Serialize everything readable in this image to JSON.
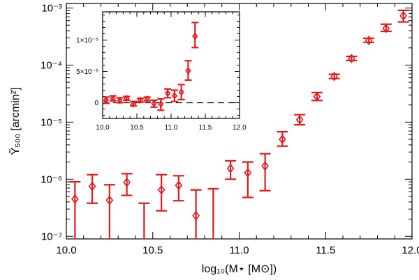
{
  "chart_data": [
    {
      "type": "scatter",
      "panel": "main",
      "xlabel": "log₁₀(M⋆ [M⊙])",
      "ylabel": "Ỹ₅₀₀ [arcmin²]",
      "xlim": [
        10.0,
        12.0
      ],
      "ylim": [
        9e-08,
        0.0012
      ],
      "yscale": "log",
      "xticks": [
        10.0,
        10.5,
        11.0,
        11.5,
        12.0
      ],
      "xtick_labels": [
        "10.0",
        "10.5",
        "11.0",
        "11.5",
        "12.0"
      ],
      "yticks": [
        1e-07,
        1e-06,
        1e-05,
        0.0001,
        0.001
      ],
      "ytick_labels": [
        "10⁻⁷",
        "10⁻⁶",
        "10⁻⁵",
        "10⁻⁴",
        "10⁻³"
      ],
      "color": "#e31a1c",
      "marker": "diamond",
      "points": [
        {
          "x": 10.05,
          "y": 4.5e-07,
          "lo": 9e-08,
          "hi": 9e-07
        },
        {
          "x": 10.15,
          "y": 7.5e-07,
          "lo": 3.8e-07,
          "hi": 1.2e-06
        },
        {
          "x": 10.25,
          "y": 4.3e-07,
          "lo": 9e-08,
          "hi": 8e-07
        },
        {
          "x": 10.35,
          "y": 8.8e-07,
          "lo": 5.2e-07,
          "hi": 1.25e-06
        },
        {
          "x": 10.45,
          "y": 9e-08,
          "lo": 9e-08,
          "hi": 3.8e-07
        },
        {
          "x": 10.55,
          "y": 6.5e-07,
          "lo": 2.8e-07,
          "hi": 1.2e-06
        },
        {
          "x": 10.65,
          "y": 7.8e-07,
          "lo": 4.2e-07,
          "hi": 1.15e-06
        },
        {
          "x": 10.75,
          "y": 2.3e-07,
          "lo": 9e-08,
          "hi": 6.5e-07
        },
        {
          "x": 10.85,
          "y": 9e-08,
          "lo": 9e-08,
          "hi": 6.8e-07
        },
        {
          "x": 10.95,
          "y": 1.55e-06,
          "lo": 1e-06,
          "hi": 2.1e-06
        },
        {
          "x": 11.05,
          "y": 1.3e-06,
          "lo": 4.8e-07,
          "hi": 2e-06
        },
        {
          "x": 11.15,
          "y": 1.7e-06,
          "lo": 6.3e-07,
          "hi": 2.8e-06
        },
        {
          "x": 11.25,
          "y": 5e-06,
          "lo": 3.8e-06,
          "hi": 6.8e-06
        },
        {
          "x": 11.35,
          "y": 1.1e-05,
          "lo": 9e-06,
          "hi": 1.35e-05
        },
        {
          "x": 11.45,
          "y": 2.8e-05,
          "lo": 2.4e-05,
          "hi": 3.3e-05
        },
        {
          "x": 11.55,
          "y": 6.3e-05,
          "lo": 5.8e-05,
          "hi": 6.9e-05
        },
        {
          "x": 11.65,
          "y": 0.00013,
          "lo": 0.00012,
          "hi": 0.000142
        },
        {
          "x": 11.75,
          "y": 0.00027,
          "lo": 0.00025,
          "hi": 0.000295
        },
        {
          "x": 11.85,
          "y": 0.00044,
          "lo": 0.00039,
          "hi": 0.00052
        },
        {
          "x": 11.95,
          "y": 0.00073,
          "lo": 0.00057,
          "hi": 0.00091
        }
      ]
    },
    {
      "type": "scatter",
      "panel": "inset",
      "xlim": [
        10.0,
        12.0
      ],
      "ylim": [
        -2.5e-06,
        1.45e-05
      ],
      "yscale": "linear",
      "xticks": [
        10.0,
        10.5,
        11.0,
        11.5,
        12.0
      ],
      "xtick_labels": [
        "10.0",
        "10.5",
        "11.0",
        "11.5",
        "12.0"
      ],
      "yticks": [
        0,
        5e-06,
        1e-05
      ],
      "ytick_labels": [
        "0",
        "5×10⁻⁶",
        "1×10⁻⁵"
      ],
      "zero_line": "dashed",
      "color": "#e31a1c",
      "marker": "diamond",
      "points": [
        {
          "x": 10.05,
          "y": 4e-07,
          "lo": -1e-07,
          "hi": 9e-07
        },
        {
          "x": 10.15,
          "y": 7e-07,
          "lo": 3e-07,
          "hi": 1.1e-06
        },
        {
          "x": 10.25,
          "y": 4e-07,
          "lo": 0,
          "hi": 8e-07
        },
        {
          "x": 10.35,
          "y": 7e-07,
          "lo": 4e-07,
          "hi": 1e-06
        },
        {
          "x": 10.45,
          "y": -2e-07,
          "lo": -5e-07,
          "hi": 2e-07
        },
        {
          "x": 10.55,
          "y": 4e-07,
          "lo": 1e-07,
          "hi": 7e-07
        },
        {
          "x": 10.65,
          "y": 6e-07,
          "lo": 3e-07,
          "hi": 9e-07
        },
        {
          "x": 10.75,
          "y": -1e-07,
          "lo": -7e-07,
          "hi": 4e-07
        },
        {
          "x": 10.85,
          "y": -2e-07,
          "lo": -1.2e-06,
          "hi": 6e-07
        },
        {
          "x": 10.95,
          "y": 1.5e-06,
          "lo": 8e-07,
          "hi": 2.2e-06
        },
        {
          "x": 11.05,
          "y": 1.1e-06,
          "lo": 2e-07,
          "hi": 2e-06
        },
        {
          "x": 11.15,
          "y": 1.7e-06,
          "lo": 5e-07,
          "hi": 2.9e-06
        },
        {
          "x": 11.25,
          "y": 5.1e-06,
          "lo": 3.6e-06,
          "hi": 6.7e-06
        },
        {
          "x": 11.35,
          "y": 1.06e-05,
          "lo": 8.8e-06,
          "hi": 1.28e-05
        }
      ]
    }
  ]
}
